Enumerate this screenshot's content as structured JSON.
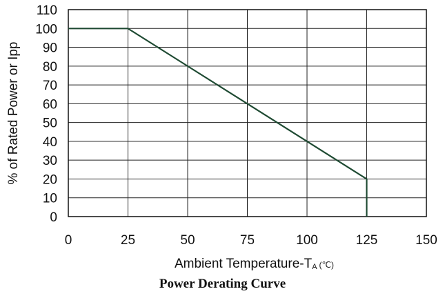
{
  "chart_data": {
    "type": "line",
    "title": "Power Derating Curve",
    "xlabel": "Ambient Temperature-T",
    "xlabel_subscript": "A",
    "xlabel_unit": "(℃)",
    "ylabel": "% of Rated Power or Ipp",
    "xlim": [
      0,
      150
    ],
    "ylim": [
      0,
      110
    ],
    "xticks": [
      0,
      25,
      50,
      75,
      100,
      125,
      150
    ],
    "yticks": [
      0,
      10,
      20,
      30,
      40,
      50,
      60,
      70,
      80,
      90,
      100,
      110
    ],
    "grid": true,
    "line_color": "#1e4a32",
    "series": [
      {
        "x": [
          0,
          25,
          125,
          125
        ],
        "y": [
          100,
          100,
          20,
          0
        ]
      }
    ]
  }
}
